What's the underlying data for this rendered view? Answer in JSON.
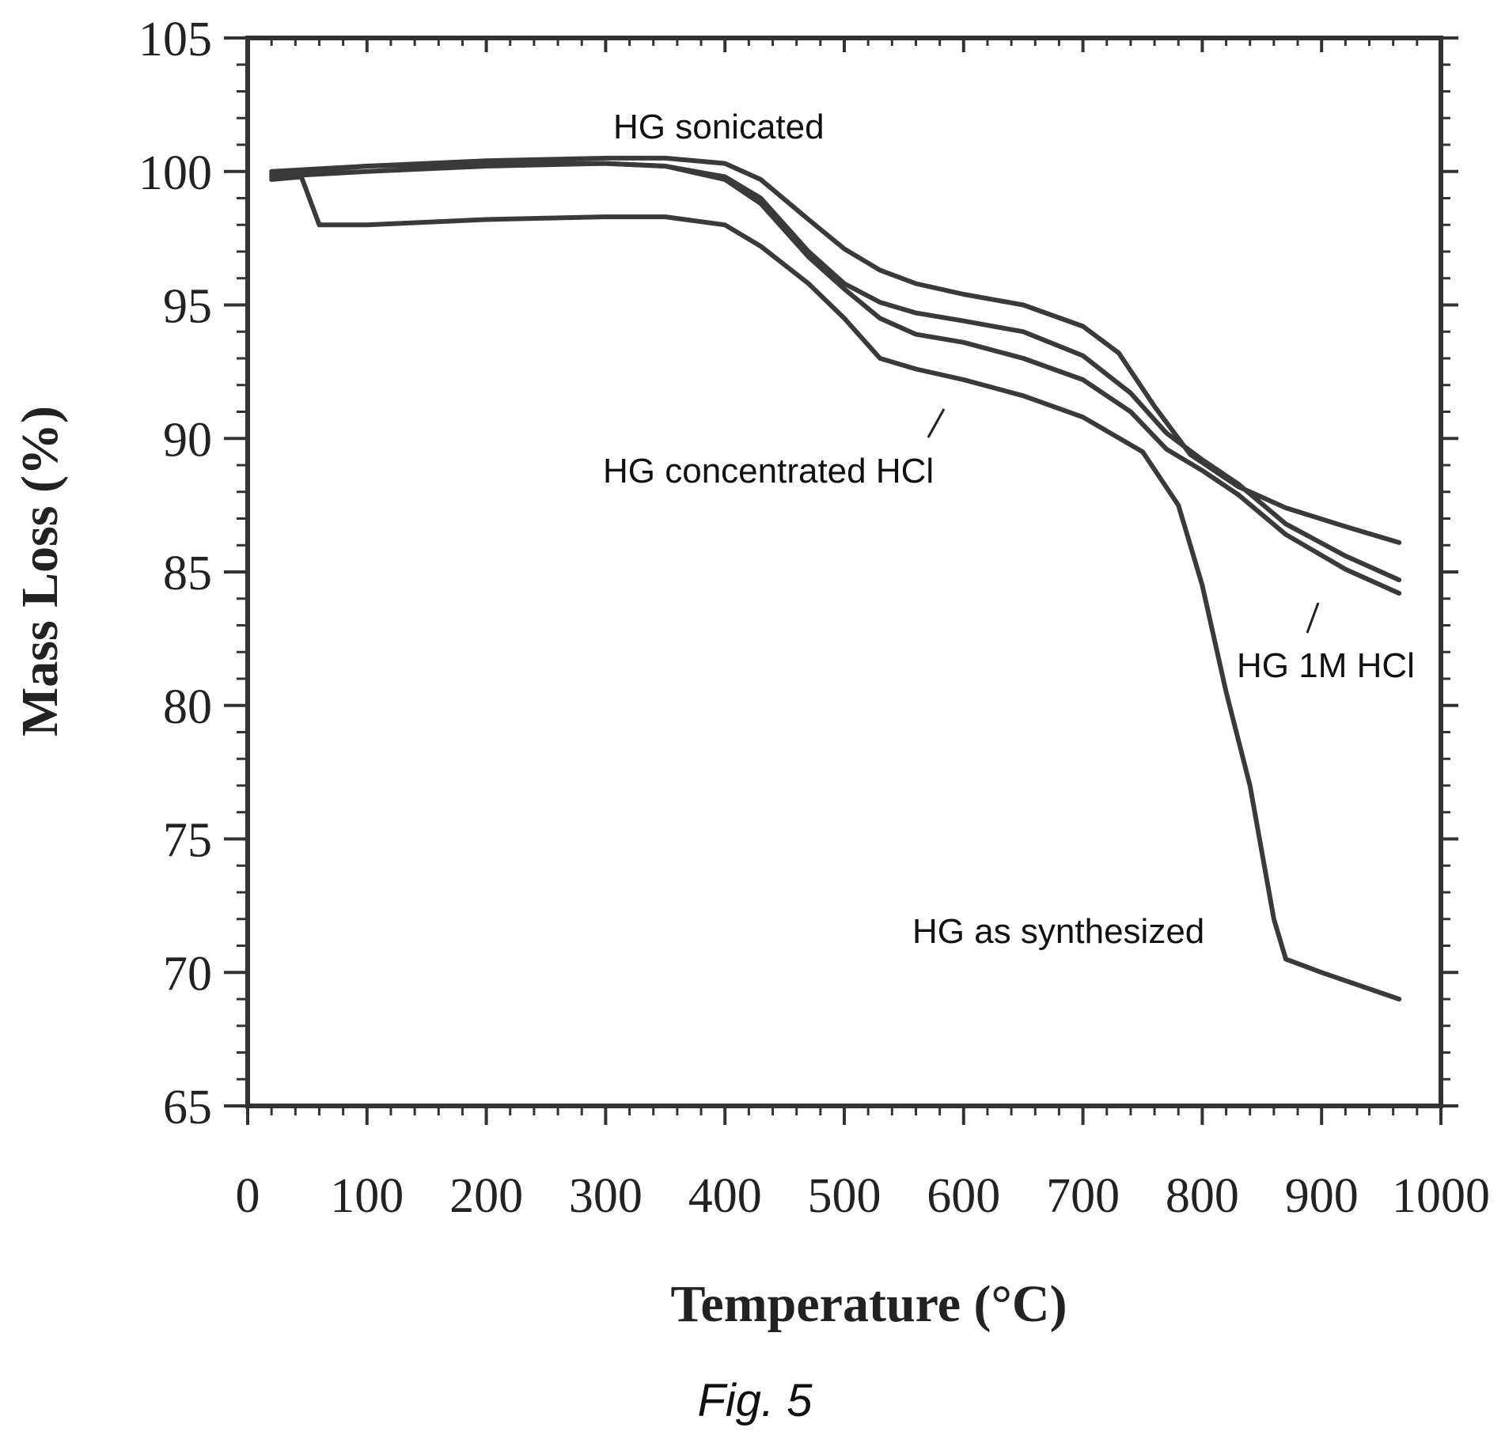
{
  "chart_data": {
    "type": "line",
    "caption": "Fig. 5",
    "xlabel": "Temperature (°C)",
    "ylabel": "Mass Loss (%)",
    "xlim": [
      0,
      1000
    ],
    "ylim": [
      65,
      105
    ],
    "x_ticks": [
      0,
      100,
      200,
      300,
      400,
      500,
      600,
      700,
      800,
      900,
      1000
    ],
    "y_ticks": [
      65,
      70,
      75,
      80,
      85,
      90,
      95,
      100,
      105
    ],
    "grid": false,
    "series": [
      {
        "name": "HG sonicated",
        "x": [
          20,
          100,
          200,
          300,
          350,
          400,
          430,
          470,
          500,
          530,
          560,
          600,
          650,
          700,
          730,
          760,
          790,
          830,
          870,
          920,
          965
        ],
        "y": [
          99.9,
          100.2,
          100.4,
          100.5,
          100.5,
          100.3,
          99.7,
          98.2,
          97.1,
          96.3,
          95.8,
          95.4,
          95.0,
          94.2,
          93.2,
          91.2,
          89.4,
          88.2,
          87.4,
          86.7,
          86.1
        ]
      },
      {
        "name": "HG concentrated HCl",
        "x": [
          20,
          100,
          200,
          300,
          350,
          400,
          430,
          470,
          500,
          530,
          560,
          600,
          650,
          700,
          740,
          770,
          800,
          830,
          870,
          920,
          965
        ],
        "y": [
          99.8,
          100.0,
          100.2,
          100.3,
          100.2,
          99.8,
          99.0,
          97.0,
          95.8,
          95.1,
          94.7,
          94.4,
          94.0,
          93.1,
          91.7,
          90.2,
          89.2,
          88.3,
          86.8,
          85.6,
          84.7
        ]
      },
      {
        "name": "HG 1M HCl",
        "x": [
          20,
          100,
          200,
          300,
          350,
          400,
          430,
          470,
          500,
          530,
          560,
          600,
          650,
          700,
          740,
          770,
          800,
          830,
          870,
          920,
          965
        ],
        "y": [
          100.0,
          100.2,
          100.3,
          100.3,
          100.2,
          99.7,
          98.8,
          96.8,
          95.6,
          94.5,
          93.9,
          93.6,
          93.0,
          92.2,
          91.0,
          89.6,
          88.8,
          87.9,
          86.4,
          85.1,
          84.2
        ]
      },
      {
        "name": "HG as synthesized",
        "x": [
          20,
          45,
          60,
          100,
          200,
          300,
          350,
          400,
          430,
          470,
          500,
          530,
          560,
          600,
          650,
          700,
          750,
          780,
          800,
          820,
          840,
          860,
          870,
          900,
          965
        ],
        "y": [
          99.7,
          99.8,
          98.0,
          98.0,
          98.2,
          98.3,
          98.3,
          98.0,
          97.2,
          95.8,
          94.5,
          93.0,
          92.6,
          92.2,
          91.6,
          90.8,
          89.5,
          87.5,
          84.5,
          80.5,
          77.0,
          72.0,
          70.5,
          70.0,
          69.0
        ]
      }
    ],
    "annotations": [
      {
        "text": "HG sonicated"
      },
      {
        "text": "HG concentrated HCl"
      },
      {
        "text": "HG 1M HCl"
      },
      {
        "text": "HG as synthesized"
      }
    ]
  }
}
